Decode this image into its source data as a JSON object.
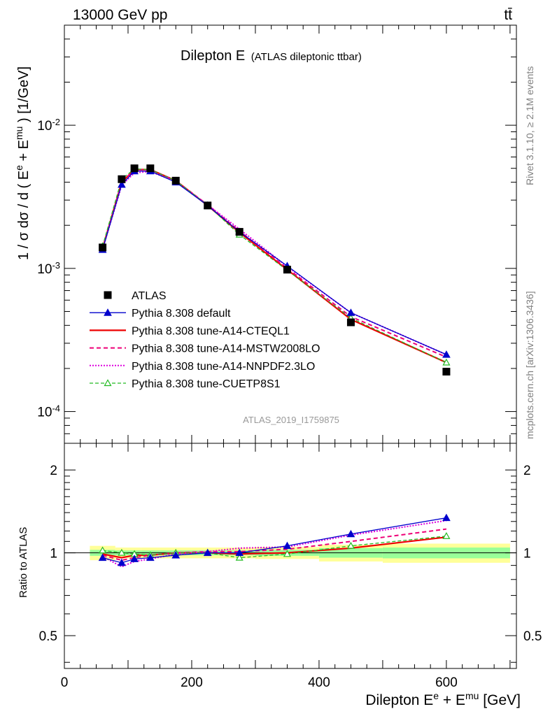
{
  "header": {
    "energy_label": "13000 GeV pp",
    "process_label": "tt̄",
    "title_main": "Dilepton E",
    "title_sub": "(ATLAS dileptonic ttbar)",
    "rivet_label": "Rivet 3.1.10, ≥ 2.1M events",
    "site_label": "mcplots.cern.ch [arXiv:1306.3436]",
    "analysis_id": "ATLAS_2019_I1759875"
  },
  "colors": {
    "atlas": "#000000",
    "default": "#0000cc",
    "cteql1": "#ee0000",
    "mstw": "#ee0077",
    "nnpdf": "#dd00dd",
    "cuetp8s1": "#22bb22",
    "band_outer": "#ffff99",
    "band_inner": "#99ff99"
  },
  "chart_data": [
    {
      "type": "line",
      "panel": "main",
      "ylabel": "1 / σ  dσ / d ( E^e + E^mu ) [1/GeV]",
      "yscale": "log",
      "ylim": [
        6e-05,
        0.05
      ],
      "xlim": [
        0,
        710
      ],
      "y_tick_labels": [
        "10^-4",
        "10^-3",
        "10^-2"
      ],
      "x": [
        60,
        90,
        110,
        135,
        175,
        225,
        275,
        350,
        450,
        600
      ],
      "series": [
        {
          "name": "ATLAS",
          "key": "atlas",
          "values": [
            0.0014,
            0.0042,
            0.005,
            0.005,
            0.0041,
            0.00275,
            0.0018,
            0.00098,
            0.00042,
            0.00019
          ]
        },
        {
          "name": "Pythia 8.308 default",
          "key": "default",
          "values": [
            0.00135,
            0.00385,
            0.00478,
            0.00478,
            0.004,
            0.00275,
            0.0018,
            0.00104,
            0.00049,
            0.00025
          ]
        },
        {
          "name": "Pythia 8.308 tune-A14-CTEQL1",
          "key": "cteql1",
          "values": [
            0.00138,
            0.004,
            0.0049,
            0.0049,
            0.0041,
            0.00275,
            0.00178,
            0.00098,
            0.00044,
            0.00022
          ]
        },
        {
          "name": "Pythia 8.308 tune-A14-MSTW2008LO",
          "key": "mstw",
          "values": [
            0.00138,
            0.004,
            0.00488,
            0.0049,
            0.0041,
            0.00278,
            0.00182,
            0.001,
            0.00046,
            0.00024
          ]
        },
        {
          "name": "Pythia 8.308 tune-A14-NNPDF2.3LO",
          "key": "nnpdf",
          "values": [
            0.00136,
            0.0038,
            0.00465,
            0.00475,
            0.00405,
            0.00278,
            0.00188,
            0.00103,
            0.00049,
            0.00025
          ]
        },
        {
          "name": "Pythia 8.308 tune-CUETP8S1",
          "key": "cuetp8s1",
          "values": [
            0.00143,
            0.0042,
            0.00495,
            0.0049,
            0.0041,
            0.00276,
            0.00172,
            0.00097,
            0.00045,
            0.00022
          ]
        }
      ]
    },
    {
      "type": "line",
      "panel": "ratio",
      "ylabel": "Ratio to ATLAS",
      "xlabel": "Dilepton E^e + E^mu [GeV]",
      "yscale": "log",
      "ylim": [
        0.38,
        2.5
      ],
      "xlim": [
        0,
        710
      ],
      "y_ticks": [
        0.5,
        1,
        2
      ],
      "y_tick_labels": [
        "0.5",
        "1",
        "2"
      ],
      "x_ticks": [
        0,
        200,
        400,
        600
      ],
      "x_tick_labels": [
        "0",
        "200",
        "400",
        "600"
      ],
      "x": [
        60,
        90,
        110,
        135,
        175,
        225,
        275,
        350,
        450,
        600
      ],
      "series": [
        {
          "name": "Pythia 8.308 default",
          "key": "default",
          "values": [
            0.96,
            0.92,
            0.95,
            0.96,
            0.98,
            1.0,
            1.0,
            1.06,
            1.17,
            1.34
          ]
        },
        {
          "name": "Pythia 8.308 tune-A14-CTEQL1",
          "key": "cteql1",
          "values": [
            0.99,
            0.96,
            0.98,
            0.98,
            1.0,
            1.0,
            0.99,
            1.0,
            1.04,
            1.14
          ]
        },
        {
          "name": "Pythia 8.308 tune-A14-MSTW2008LO",
          "key": "mstw",
          "values": [
            0.98,
            0.94,
            0.96,
            0.98,
            1.0,
            1.01,
            1.01,
            1.03,
            1.1,
            1.22
          ]
        },
        {
          "name": "Pythia 8.308 tune-A14-NNPDF2.3LO",
          "key": "nnpdf",
          "values": [
            0.97,
            0.89,
            0.93,
            0.95,
            0.99,
            1.01,
            1.04,
            1.05,
            1.16,
            1.31
          ]
        },
        {
          "name": "Pythia 8.308 tune-CUETP8S1",
          "key": "cuetp8s1",
          "values": [
            1.02,
            1.0,
            0.99,
            0.98,
            1.0,
            1.0,
            0.96,
            0.99,
            1.06,
            1.15
          ]
        }
      ],
      "bands": [
        {
          "x0": 40,
          "x1": 80,
          "inner": [
            0.975,
            1.025
          ],
          "outer": [
            0.94,
            1.06
          ]
        },
        {
          "x0": 80,
          "x1": 100,
          "inner": [
            0.98,
            1.02
          ],
          "outer": [
            0.955,
            1.045
          ]
        },
        {
          "x0": 100,
          "x1": 120,
          "inner": [
            0.98,
            1.02
          ],
          "outer": [
            0.955,
            1.045
          ]
        },
        {
          "x0": 120,
          "x1": 150,
          "inner": [
            0.98,
            1.02
          ],
          "outer": [
            0.955,
            1.045
          ]
        },
        {
          "x0": 150,
          "x1": 200,
          "inner": [
            0.98,
            1.02
          ],
          "outer": [
            0.955,
            1.045
          ]
        },
        {
          "x0": 200,
          "x1": 250,
          "inner": [
            0.98,
            1.02
          ],
          "outer": [
            0.955,
            1.045
          ]
        },
        {
          "x0": 250,
          "x1": 300,
          "inner": [
            0.98,
            1.02
          ],
          "outer": [
            0.955,
            1.045
          ]
        },
        {
          "x0": 300,
          "x1": 400,
          "inner": [
            0.975,
            1.025
          ],
          "outer": [
            0.95,
            1.05
          ]
        },
        {
          "x0": 400,
          "x1": 500,
          "inner": [
            0.96,
            1.04
          ],
          "outer": [
            0.93,
            1.07
          ]
        },
        {
          "x0": 500,
          "x1": 700,
          "inner": [
            0.955,
            1.045
          ],
          "outer": [
            0.92,
            1.08
          ]
        }
      ]
    }
  ]
}
